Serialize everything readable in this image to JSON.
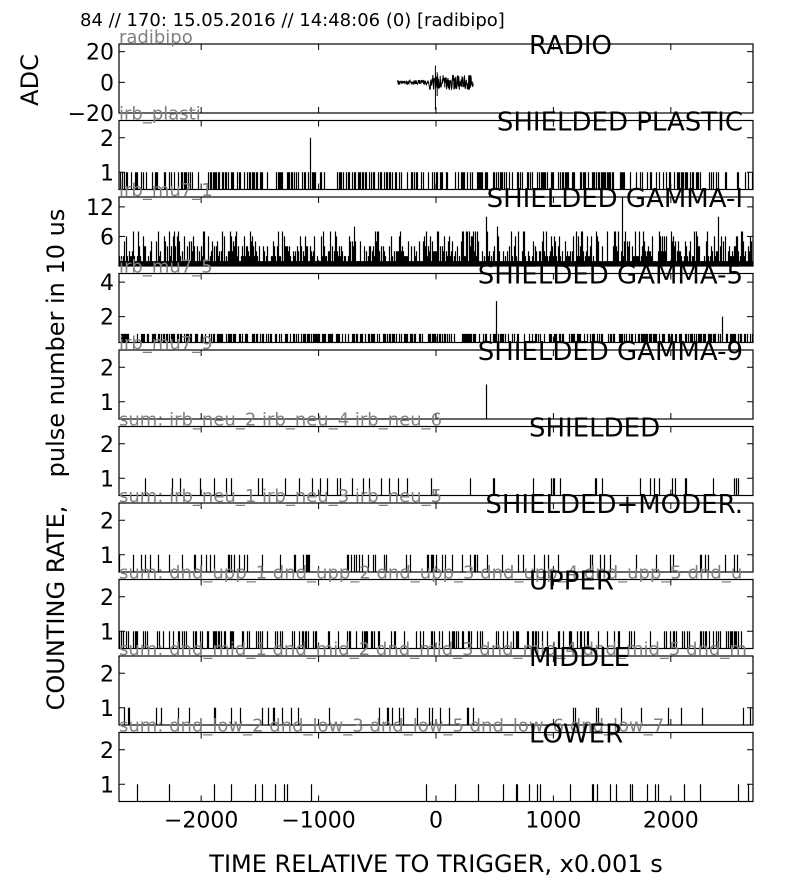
{
  "header": "84 // 170:   15.05.2016 // 14:48:06 (0)  [radibipo]",
  "y_labels": {
    "adc": "ADC",
    "pulse": "pulse number in 10 us",
    "rate": "COUNTING RATE,"
  },
  "x_label": "TIME RELATIVE TO TRIGGER,   x0.001 s",
  "chart_data": {
    "type": "line",
    "xlim": [
      -2700,
      2700
    ],
    "x_ticks": [
      -2000,
      -1000,
      0,
      1000,
      2000
    ],
    "x_tick_labels": [
      "−2000",
      "−1000",
      "0",
      "1000",
      "2000"
    ],
    "panels": [
      {
        "title": "RADIO",
        "source": "radibipo",
        "ylim": [
          -20,
          25
        ],
        "y_ticks": [
          20,
          0,
          -20
        ],
        "y_tick_labels": [
          "20",
          "0",
          "−20"
        ],
        "style": "waveform",
        "signal": {
          "x_start": -330,
          "x_end": 320,
          "baseline_amp": 1.5,
          "burst_x": [
            -60,
            320
          ],
          "burst_amp": 5,
          "spike_x": -5,
          "spike_min": -18,
          "spike_max": 11
        }
      },
      {
        "title": "SHIELDED PLASTIC",
        "source": "irb_plasti",
        "ylim": [
          0.5,
          2.5
        ],
        "y_ticks": [
          2,
          1
        ],
        "style": "pulses",
        "density": 0.45,
        "background_max": 1,
        "peaks": [
          {
            "x": -1070,
            "y": 2
          }
        ]
      },
      {
        "title": "SHIELDED GAMMA-I",
        "source": "irb_mu7_1",
        "ylim": [
          0,
          14
        ],
        "y_ticks": [
          12,
          6
        ],
        "style": "pulses",
        "density": 1.0,
        "background_max": 7,
        "peaks": [
          {
            "x": -1700,
            "y": 7
          },
          {
            "x": -700,
            "y": 8
          },
          {
            "x": 430,
            "y": 10
          },
          {
            "x": 520,
            "y": 8
          },
          {
            "x": 1550,
            "y": 7
          },
          {
            "x": 1580,
            "y": 14
          },
          {
            "x": 2400,
            "y": 10
          }
        ]
      },
      {
        "title": "SHIELDED GAMMA-5",
        "source": "irb_mu7_5",
        "ylim": [
          0.5,
          4.5
        ],
        "y_ticks": [
          4,
          2
        ],
        "style": "pulses",
        "density": 0.55,
        "background_max": 1,
        "peaks": [
          {
            "x": 510,
            "y": 2.9
          },
          {
            "x": 2440,
            "y": 2
          }
        ]
      },
      {
        "title": "SHIELDED GAMMA-9",
        "source": "irb_mu7_9",
        "ylim": [
          0.5,
          2.5
        ],
        "y_ticks": [
          2,
          1
        ],
        "style": "pulses",
        "density": 0.0,
        "background_max": 1,
        "peaks": [
          {
            "x": 430,
            "y": 1.5
          }
        ]
      },
      {
        "title": "SHIELDED",
        "source": "sum: irb_neu_2 irb_neu_4 irb_neu_6",
        "ylim": [
          0.5,
          2.5
        ],
        "y_ticks": [
          2,
          1
        ],
        "style": "pulses",
        "density": 0.08,
        "background_max": 1,
        "peaks": []
      },
      {
        "title": "SHIELDED+MODER.",
        "source": "sum: irb_neu_1 irb_neu_3 irb_neu_5",
        "ylim": [
          0.5,
          2.5
        ],
        "y_ticks": [
          2,
          1
        ],
        "style": "pulses",
        "density": 0.13,
        "background_max": 1,
        "peaks": []
      },
      {
        "title": "UPPER",
        "source": "sum: dnd_upp_1 dnd_upp_2 dnd_upp_3 dnd_upp_4 dnd_upp_5 dnd_u",
        "ylim": [
          0.5,
          2.5
        ],
        "y_ticks": [
          2,
          1
        ],
        "style": "pulses",
        "density": 0.28,
        "background_max": 1,
        "peaks": []
      },
      {
        "title": "MIDDLE",
        "source": "sum: dnd_mid_1 dnd_mid_2 dnd_mid_3 dnd_mid_4 dnd_mid_5 dnd_m",
        "ylim": [
          0.5,
          2.5
        ],
        "y_ticks": [
          2,
          1
        ],
        "style": "pulses",
        "density": 0.06,
        "background_max": 1,
        "peaks": []
      },
      {
        "title": "LOWER",
        "source": "sum: dnd_low_2 dnd_low_3 dnd_low_5 dnd_low_6 dnd_low_7",
        "ylim": [
          0.5,
          2.5
        ],
        "y_ticks": [
          2,
          1
        ],
        "style": "pulses",
        "density": 0.06,
        "background_max": 1,
        "peaks": []
      }
    ]
  }
}
